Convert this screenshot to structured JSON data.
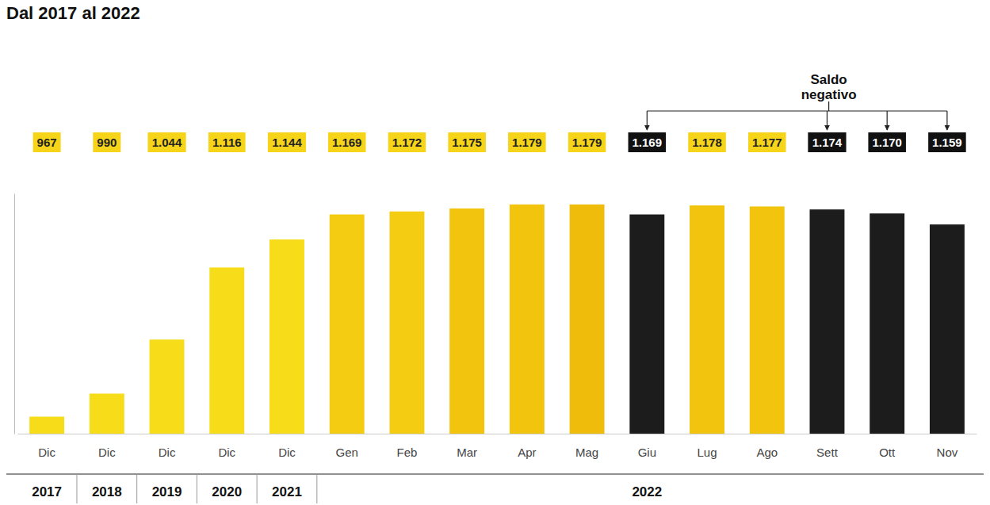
{
  "chart_data": {
    "type": "bar",
    "title": "Dal 2017 al 2022",
    "categories": [
      "Dic",
      "Dic",
      "Dic",
      "Dic",
      "Dic",
      "Gen",
      "Feb",
      "Mar",
      "Apr",
      "Mag",
      "Giu",
      "Lug",
      "Ago",
      "Sett",
      "Ott",
      "Nov"
    ],
    "year_labels": [
      "2017",
      "2018",
      "2019",
      "2020",
      "2021",
      "2022",
      null,
      null,
      null,
      null,
      null,
      null,
      null,
      null,
      null,
      null
    ],
    "values": [
      967,
      990,
      1044,
      1116,
      1144,
      1169,
      1172,
      1175,
      1179,
      1179,
      1169,
      1178,
      1177,
      1174,
      1170,
      1159
    ],
    "value_labels": [
      "967",
      "990",
      "1.044",
      "1.116",
      "1.144",
      "1.169",
      "1.172",
      "1.175",
      "1.179",
      "1.179",
      "1.169",
      "1.178",
      "1.177",
      "1.174",
      "1.170",
      "1.159"
    ],
    "colors": [
      "#f7dc1a",
      "#f7dc1a",
      "#f7dc1a",
      "#f7dc1a",
      "#f7dc1a",
      "#f4cc12",
      "#f4cc12",
      "#f2c40e",
      "#f2c40e",
      "#f0bc0c",
      "#1c1c1c",
      "#f2c40e",
      "#f2c40e",
      "#1c1c1c",
      "#1c1c1c",
      "#1c1c1c"
    ],
    "annotation": {
      "text": "Saldo negativo",
      "targets": [
        10,
        13,
        14,
        15
      ]
    },
    "ylim": [
      950,
      1190
    ],
    "yticks": [],
    "data_labels": true,
    "tick_labels": "x",
    "grid": false
  }
}
